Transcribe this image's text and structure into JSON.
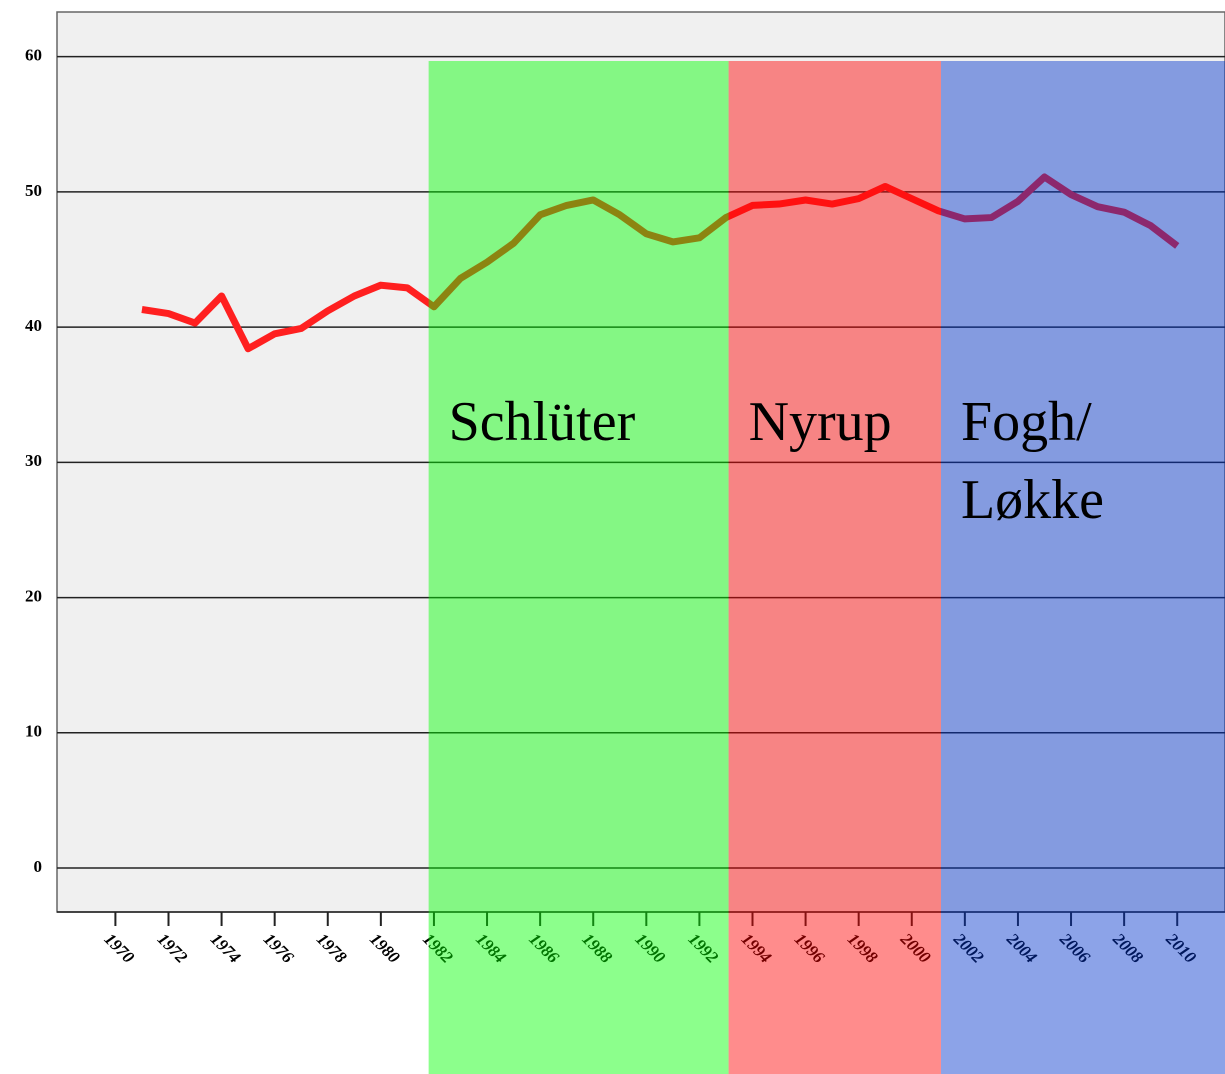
{
  "chart_data": {
    "type": "line",
    "x": [
      1971,
      1972,
      1973,
      1974,
      1975,
      1976,
      1977,
      1978,
      1979,
      1980,
      1981,
      1982,
      1983,
      1984,
      1985,
      1986,
      1987,
      1988,
      1989,
      1990,
      1991,
      1992,
      1993,
      1994,
      1995,
      1996,
      1997,
      1998,
      1999,
      2000,
      2001,
      2002,
      2003,
      2004,
      2005,
      2006,
      2007,
      2008,
      2009,
      2010
    ],
    "series": [
      {
        "color": "#ff2020",
        "values": [
          41.3,
          41.0,
          40.3,
          42.3,
          38.4,
          39.5,
          39.9,
          41.2,
          42.3,
          43.1,
          42.9,
          41.5,
          43.6,
          44.8,
          46.2,
          48.3,
          49.0,
          49.4,
          48.3,
          46.9,
          46.3,
          46.6,
          48.1,
          49.0,
          49.1,
          49.4,
          49.1,
          49.5,
          50.4,
          49.5,
          48.6,
          48.0,
          48.1,
          49.3,
          51.1,
          49.8,
          48.9,
          48.5,
          47.5,
          46.0
        ]
      }
    ],
    "periods": [
      {
        "labels": [
          "Schlüter"
        ],
        "start": 1981.8,
        "end": 1993.1,
        "color": "#00ff00"
      },
      {
        "labels": [
          "Nyrup"
        ],
        "start": 1993.1,
        "end": 2001.1,
        "color": "#ff0000"
      },
      {
        "labels": [
          "Fogh/",
          "Løkke"
        ],
        "start": 2001.1,
        "end": 2012,
        "color": "#0033cc"
      }
    ],
    "xlim": [
      1967.8,
      2011.8
    ],
    "xticks": [
      1970,
      1972,
      1974,
      1976,
      1978,
      1980,
      1982,
      1984,
      1986,
      1988,
      1990,
      1992,
      1994,
      1996,
      1998,
      2000,
      2002,
      2004,
      2006,
      2008,
      2010
    ],
    "ylim": [
      -3.25,
      63.3
    ],
    "yticks": [
      0,
      10,
      20,
      30,
      40,
      50,
      60
    ],
    "grid": true
  }
}
